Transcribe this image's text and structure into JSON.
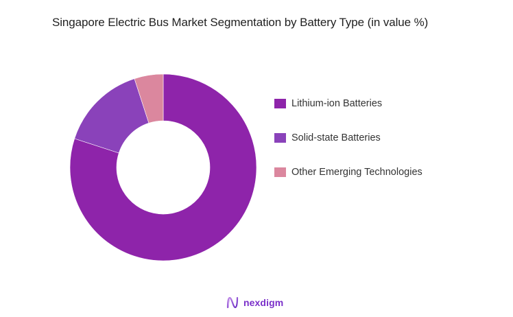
{
  "title": "Singapore Electric Bus Market Segmentation by Battery Type (in value %)",
  "chart_data": {
    "type": "pie",
    "variant": "donut",
    "title": "Singapore Electric Bus Market Segmentation by Battery Type (in value %)",
    "categories": [
      "Lithium-ion Batteries",
      "Solid-state Batteries",
      "Other Emerging Technologies"
    ],
    "values": [
      80,
      15,
      5
    ],
    "unit": "%",
    "colors": [
      "#8E24AA",
      "#8A42BA",
      "#DB879E"
    ],
    "start_angle": "12 o'clock, clockwise",
    "legend_position": "right",
    "data_labels": false
  },
  "legend": {
    "items": [
      {
        "label": "Lithium-ion Batteries",
        "color": "#8E24AA"
      },
      {
        "label": "Solid-state Batteries",
        "color": "#8A42BA"
      },
      {
        "label": "Other Emerging Technologies",
        "color": "#DB879E"
      }
    ]
  },
  "brand": {
    "name": "nexdigm",
    "color": "#7a2fc9"
  }
}
